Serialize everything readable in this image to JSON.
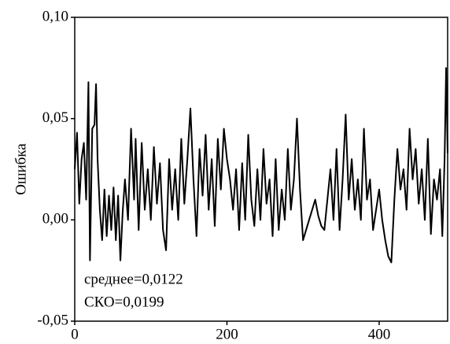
{
  "chart_data": {
    "type": "line",
    "y_label": "Ошибка",
    "annotations": [
      "среднее=0,0122",
      "СКО=0,0199"
    ],
    "color": "#000000",
    "xlim": [
      0,
      490
    ],
    "xticks": [
      0,
      200,
      400
    ],
    "ylim": [
      -0.05,
      0.1
    ],
    "yticks": [
      {
        "value": -0.05,
        "label": "-0,05"
      },
      {
        "value": 0,
        "label": "0,00"
      },
      {
        "value": 0.05,
        "label": "0,05"
      },
      {
        "value": 0.1,
        "label": "0,10"
      }
    ],
    "x": [
      0,
      3,
      6,
      9,
      12,
      15,
      18,
      20,
      23,
      26,
      28,
      30,
      33,
      36,
      39,
      42,
      45,
      48,
      51,
      54,
      57,
      60,
      63,
      66,
      70,
      74,
      78,
      80,
      84,
      88,
      92,
      96,
      100,
      104,
      108,
      112,
      116,
      120,
      124,
      128,
      132,
      136,
      140,
      144,
      148,
      152,
      156,
      160,
      164,
      168,
      172,
      176,
      180,
      184,
      188,
      192,
      196,
      200,
      204,
      208,
      212,
      216,
      220,
      224,
      228,
      232,
      236,
      240,
      244,
      248,
      252,
      256,
      260,
      264,
      268,
      272,
      276,
      280,
      284,
      288,
      292,
      296,
      300,
      304,
      308,
      312,
      316,
      320,
      324,
      328,
      332,
      336,
      340,
      344,
      348,
      352,
      356,
      360,
      364,
      368,
      372,
      376,
      380,
      384,
      388,
      392,
      396,
      400,
      404,
      408,
      412,
      416,
      420,
      424,
      428,
      432,
      436,
      440,
      444,
      448,
      452,
      456,
      460,
      464,
      468,
      472,
      476,
      480,
      483,
      486,
      488,
      490
    ],
    "values": [
      0.025,
      0.043,
      0.008,
      0.03,
      0.038,
      0.01,
      0.068,
      -0.02,
      0.045,
      0.047,
      0.067,
      0.03,
      0.005,
      -0.01,
      0.015,
      -0.008,
      0.012,
      -0.005,
      0.016,
      -0.01,
      0.012,
      -0.02,
      0.004,
      0.02,
      0.0,
      0.045,
      0.01,
      0.04,
      -0.005,
      0.038,
      0.005,
      0.025,
      0.0,
      0.036,
      0.008,
      0.028,
      -0.005,
      -0.015,
      0.03,
      0.005,
      0.025,
      0.0,
      0.04,
      0.008,
      0.03,
      0.055,
      0.02,
      -0.008,
      0.035,
      0.012,
      0.042,
      0.005,
      0.03,
      -0.003,
      0.04,
      0.015,
      0.045,
      0.03,
      0.02,
      0.005,
      0.025,
      -0.005,
      0.028,
      0.0,
      0.042,
      0.01,
      -0.003,
      0.025,
      0.0,
      0.035,
      0.008,
      0.02,
      -0.008,
      0.03,
      -0.005,
      0.015,
      0.0,
      0.035,
      0.005,
      0.02,
      0.05,
      0.015,
      -0.01,
      -0.005,
      0.0,
      0.005,
      0.01,
      0.002,
      -0.003,
      -0.005,
      0.01,
      0.025,
      0.0,
      0.035,
      -0.005,
      0.02,
      0.052,
      0.01,
      0.03,
      0.005,
      0.02,
      0.0,
      0.045,
      0.01,
      0.02,
      -0.005,
      0.005,
      0.015,
      0.0,
      -0.01,
      -0.018,
      -0.021,
      0.01,
      0.035,
      0.015,
      0.025,
      0.005,
      0.045,
      0.02,
      0.035,
      0.008,
      0.025,
      0.0,
      0.04,
      -0.007,
      0.02,
      0.01,
      0.025,
      -0.008,
      0.03,
      0.075,
      0.033
    ]
  }
}
